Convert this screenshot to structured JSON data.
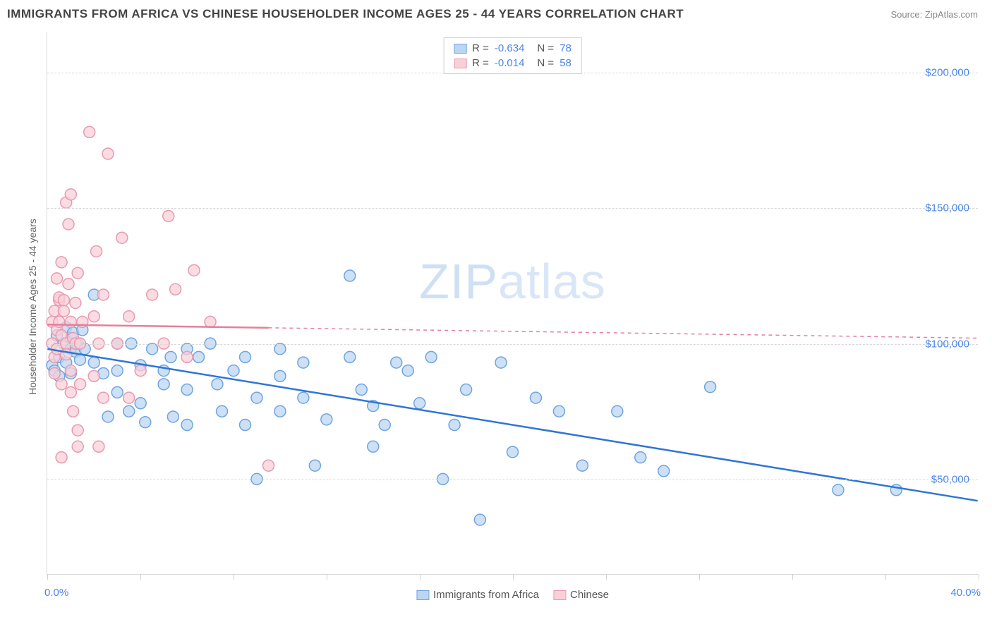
{
  "header": {
    "title": "IMMIGRANTS FROM AFRICA VS CHINESE HOUSEHOLDER INCOME AGES 25 - 44 YEARS CORRELATION CHART",
    "source_prefix": "Source: ",
    "source_name": "ZipAtlas.com"
  },
  "watermark": {
    "bold_part": "ZIP",
    "thin_part": "atlas"
  },
  "chart": {
    "type": "scatter",
    "xlim": [
      0,
      40
    ],
    "ylim": [
      15000,
      215000
    ],
    "x_axis_label_left": "0.0%",
    "x_axis_label_right": "40.0%",
    "y_axis_title": "Householder Income Ages 25 - 44 years",
    "y_ticks": [
      {
        "value": 50000,
        "label": "$50,000"
      },
      {
        "value": 100000,
        "label": "$100,000"
      },
      {
        "value": 150000,
        "label": "$150,000"
      },
      {
        "value": 200000,
        "label": "$200,000"
      }
    ],
    "x_tick_positions": [
      0,
      4,
      8,
      12,
      16,
      20,
      24,
      28,
      32,
      36,
      40
    ],
    "grid_color": "#d8d8d8",
    "background_color": "#ffffff",
    "marker_radius": 8,
    "marker_stroke_width": 1.5,
    "trend_line_width": 2.5,
    "series": [
      {
        "id": "africa",
        "label": "Immigrants from Africa",
        "fill": "#bcd6f2",
        "stroke": "#6ea5e0",
        "trend_color": "#2e75d6",
        "trend_dash": "none",
        "R": "-0.634",
        "N": "78",
        "trend": {
          "x1": 0,
          "y1": 98000,
          "x2": 40,
          "y2": 42000
        },
        "points": [
          [
            0.2,
            92000
          ],
          [
            0.3,
            90000
          ],
          [
            0.4,
            103000
          ],
          [
            0.5,
            95000
          ],
          [
            0.5,
            88000
          ],
          [
            0.7,
            100000
          ],
          [
            0.8,
            106000
          ],
          [
            0.8,
            93000
          ],
          [
            1.0,
            98000
          ],
          [
            1.0,
            102000
          ],
          [
            1.0,
            89000
          ],
          [
            1.1,
            104000
          ],
          [
            1.2,
            97000
          ],
          [
            1.3,
            100000
          ],
          [
            1.4,
            94000
          ],
          [
            1.5,
            105000
          ],
          [
            1.6,
            98000
          ],
          [
            2.0,
            118000
          ],
          [
            2.0,
            93000
          ],
          [
            2.4,
            89000
          ],
          [
            2.6,
            73000
          ],
          [
            3.0,
            100000
          ],
          [
            3.0,
            90000
          ],
          [
            3.0,
            82000
          ],
          [
            3.5,
            75000
          ],
          [
            3.6,
            100000
          ],
          [
            4.0,
            92000
          ],
          [
            4.0,
            78000
          ],
          [
            4.2,
            71000
          ],
          [
            4.5,
            98000
          ],
          [
            5.0,
            90000
          ],
          [
            5.0,
            85000
          ],
          [
            5.3,
            95000
          ],
          [
            5.4,
            73000
          ],
          [
            6.0,
            98000
          ],
          [
            6.0,
            83000
          ],
          [
            6.0,
            70000
          ],
          [
            6.5,
            95000
          ],
          [
            7.0,
            100000
          ],
          [
            7.3,
            85000
          ],
          [
            7.5,
            75000
          ],
          [
            8.0,
            90000
          ],
          [
            8.5,
            95000
          ],
          [
            8.5,
            70000
          ],
          [
            9.0,
            50000
          ],
          [
            9.0,
            80000
          ],
          [
            10.0,
            98000
          ],
          [
            10.0,
            88000
          ],
          [
            10.0,
            75000
          ],
          [
            11.0,
            93000
          ],
          [
            11.0,
            80000
          ],
          [
            11.5,
            55000
          ],
          [
            12.0,
            72000
          ],
          [
            13.0,
            95000
          ],
          [
            13.0,
            125000
          ],
          [
            13.5,
            83000
          ],
          [
            14.0,
            62000
          ],
          [
            14.0,
            77000
          ],
          [
            14.5,
            70000
          ],
          [
            15.0,
            93000
          ],
          [
            15.5,
            90000
          ],
          [
            16.0,
            78000
          ],
          [
            16.5,
            95000
          ],
          [
            17.0,
            50000
          ],
          [
            17.5,
            70000
          ],
          [
            18.0,
            83000
          ],
          [
            18.6,
            35000
          ],
          [
            19.5,
            93000
          ],
          [
            20.0,
            60000
          ],
          [
            21.0,
            80000
          ],
          [
            22.0,
            75000
          ],
          [
            23.0,
            55000
          ],
          [
            24.5,
            75000
          ],
          [
            25.5,
            58000
          ],
          [
            26.5,
            53000
          ],
          [
            28.5,
            84000
          ],
          [
            34.0,
            46000
          ],
          [
            36.5,
            46000
          ]
        ]
      },
      {
        "id": "chinese",
        "label": "Chinese",
        "fill": "#f8d0d8",
        "stroke": "#e99ab0",
        "trend_color": "#e57f9b",
        "trend_dash": "5,5",
        "R": "-0.014",
        "N": "58",
        "trend": {
          "x1": 0,
          "y1": 107000,
          "x2": 40,
          "y2": 102000
        },
        "trend_solid_until_x": 9.5,
        "points": [
          [
            0.2,
            100000
          ],
          [
            0.2,
            108000
          ],
          [
            0.3,
            95000
          ],
          [
            0.3,
            112000
          ],
          [
            0.3,
            89000
          ],
          [
            0.4,
            105000
          ],
          [
            0.4,
            124000
          ],
          [
            0.4,
            98000
          ],
          [
            0.5,
            108000
          ],
          [
            0.5,
            116000
          ],
          [
            0.5,
            117000
          ],
          [
            0.6,
            103000
          ],
          [
            0.6,
            130000
          ],
          [
            0.6,
            85000
          ],
          [
            0.6,
            58000
          ],
          [
            0.7,
            112000
          ],
          [
            0.7,
            116000
          ],
          [
            0.8,
            100000
          ],
          [
            0.8,
            152000
          ],
          [
            0.8,
            96000
          ],
          [
            0.9,
            122000
          ],
          [
            0.9,
            144000
          ],
          [
            1.0,
            108000
          ],
          [
            1.0,
            155000
          ],
          [
            1.0,
            90000
          ],
          [
            1.0,
            82000
          ],
          [
            1.1,
            102000
          ],
          [
            1.1,
            75000
          ],
          [
            1.2,
            115000
          ],
          [
            1.2,
            100000
          ],
          [
            1.3,
            126000
          ],
          [
            1.3,
            68000
          ],
          [
            1.3,
            62000
          ],
          [
            1.4,
            100000
          ],
          [
            1.4,
            85000
          ],
          [
            1.5,
            108000
          ],
          [
            1.8,
            178000
          ],
          [
            2.0,
            110000
          ],
          [
            2.0,
            88000
          ],
          [
            2.1,
            134000
          ],
          [
            2.2,
            100000
          ],
          [
            2.2,
            62000
          ],
          [
            2.4,
            80000
          ],
          [
            2.4,
            118000
          ],
          [
            2.6,
            170000
          ],
          [
            3.0,
            100000
          ],
          [
            3.2,
            139000
          ],
          [
            3.5,
            110000
          ],
          [
            3.5,
            80000
          ],
          [
            4.0,
            90000
          ],
          [
            4.5,
            118000
          ],
          [
            5.0,
            100000
          ],
          [
            5.2,
            147000
          ],
          [
            5.5,
            120000
          ],
          [
            6.0,
            95000
          ],
          [
            6.3,
            127000
          ],
          [
            7.0,
            108000
          ],
          [
            9.5,
            55000
          ]
        ]
      }
    ]
  },
  "legend_bottom": [
    {
      "series": "africa",
      "label": "Immigrants from Africa"
    },
    {
      "series": "chinese",
      "label": "Chinese"
    }
  ]
}
